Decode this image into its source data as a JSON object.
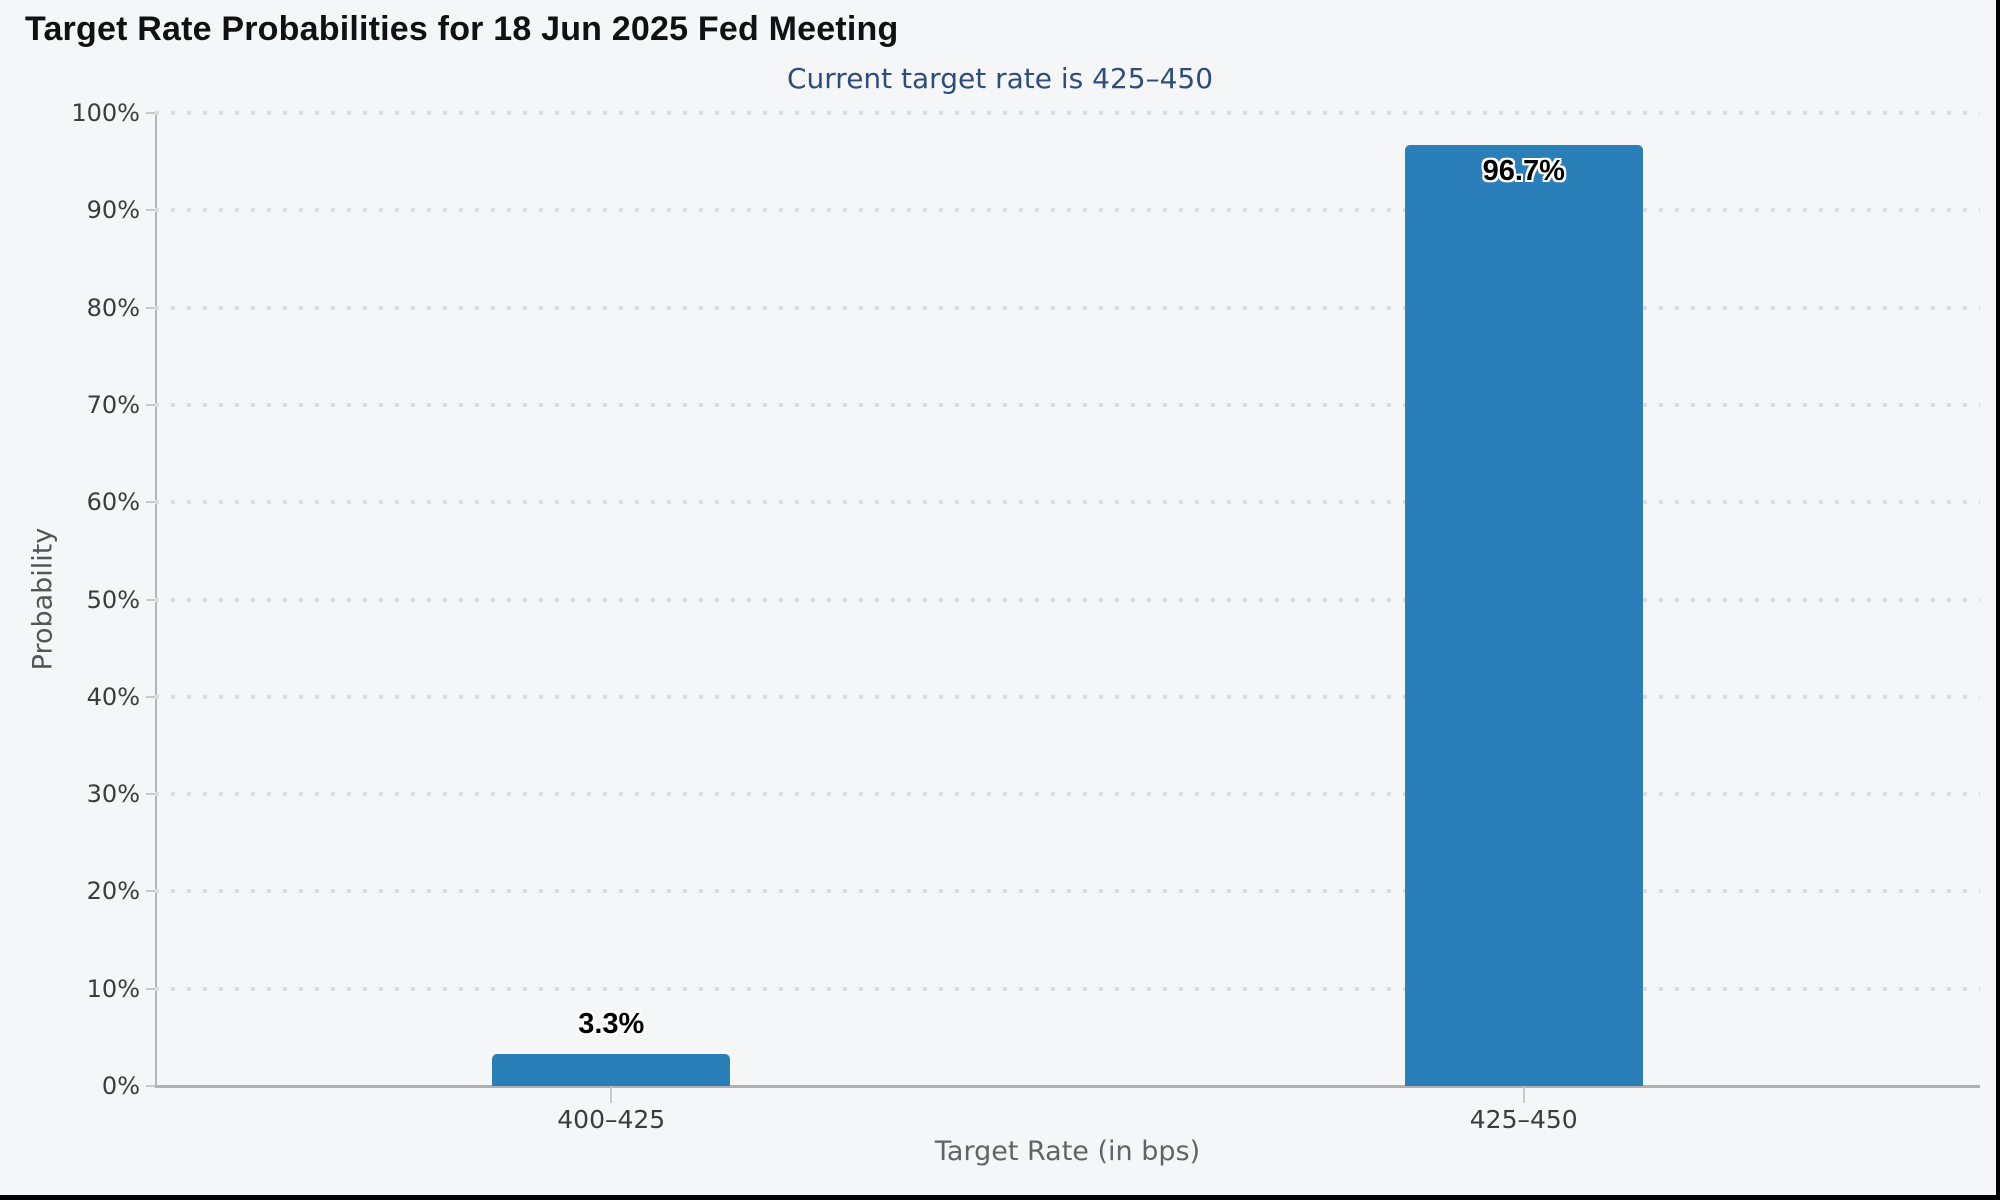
{
  "title": "Target Rate Probabilities for 18 Jun 2025 Fed Meeting",
  "subtitle": "Current target rate is 425–450",
  "chart_data": {
    "type": "bar",
    "title": "Target Rate Probabilities for 18 Jun 2025 Fed Meeting",
    "subtitle": "Current target rate is 425–450",
    "categories": [
      "400–425",
      "425–450"
    ],
    "values": [
      3.3,
      96.7
    ],
    "value_labels": [
      "3.3%",
      "96.7%"
    ],
    "xlabel": "Target Rate (in bps)",
    "ylabel": "Probability",
    "ylim": [
      0,
      100
    ],
    "ytick_step": 10,
    "ytick_suffix": "%",
    "grid": "dotted-horizontal",
    "legend": "none",
    "bar_color": "#2a7fb8",
    "colors": {
      "background": "#f5f6f7",
      "title_text": "#111111",
      "subtitle_text": "#2e4d7b",
      "tick_label": "#3c3c3c",
      "axis_title": "#606060",
      "grid_dot": "#dcdcdc",
      "axis_line": "#b3b3b3"
    }
  }
}
